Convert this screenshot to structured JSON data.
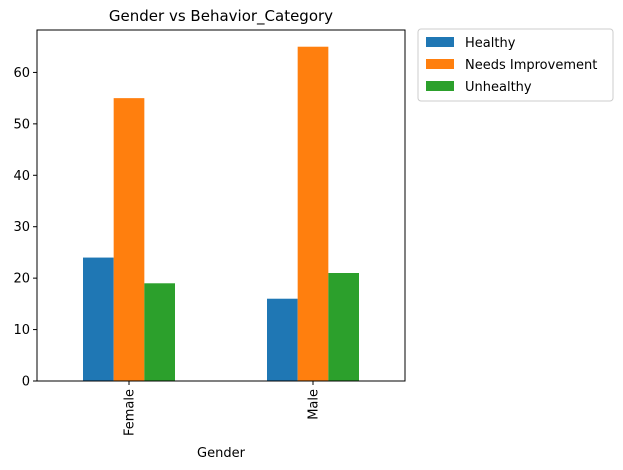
{
  "chart_data": {
    "type": "bar",
    "title": "Gender vs Behavior_Category",
    "xlabel": "Gender",
    "ylabel": "",
    "categories": [
      "Female",
      "Male"
    ],
    "series": [
      {
        "name": "Healthy",
        "color": "#1f77b4",
        "values": [
          24,
          16
        ]
      },
      {
        "name": "Needs Improvement",
        "color": "#ff7f0e",
        "values": [
          55,
          65
        ]
      },
      {
        "name": "Unhealthy",
        "color": "#2ca02c",
        "values": [
          19,
          21
        ]
      }
    ],
    "ylim": [
      0,
      68.25
    ],
    "yticks": [
      0,
      10,
      20,
      30,
      40,
      50,
      60
    ],
    "grid": false,
    "legend_position": "outside-top-right"
  }
}
